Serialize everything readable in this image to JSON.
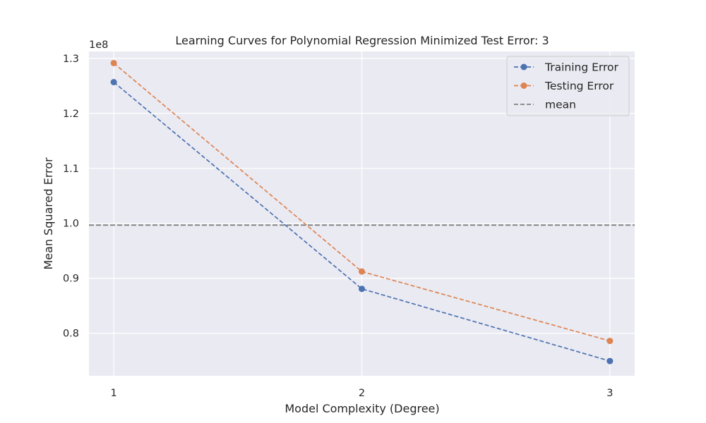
{
  "chart_data": {
    "type": "line",
    "title": "Learning Curves for Polynomial Regression Minimized Test Error: 3",
    "xlabel": "Model Complexity (Degree)",
    "ylabel": "Mean Squared Error",
    "y_offset_label": "1e8",
    "x": [
      1,
      2,
      3
    ],
    "x_tick_labels": [
      "1",
      "2",
      "3"
    ],
    "xlim": [
      0.9,
      3.1
    ],
    "ylim": [
      0.7226,
      1.3126
    ],
    "y_ticks": [
      0.8,
      0.9,
      1.0,
      1.1,
      1.2,
      1.3
    ],
    "y_tick_labels": [
      "0.8",
      "0.9",
      "1.0",
      "1.1",
      "1.2",
      "1.3"
    ],
    "y_scale_factor": 100000000,
    "grid": true,
    "legend_position": "top-right",
    "series": [
      {
        "name": "Training Error",
        "values": [
          1.2568,
          0.8807,
          0.7494
        ],
        "color": "#4c72b0",
        "style": "dashed",
        "marker": "circle"
      },
      {
        "name": "Testing Error",
        "values": [
          1.2915,
          0.9122,
          0.786
        ],
        "color": "#dd8452",
        "style": "dashed",
        "marker": "circle"
      }
    ],
    "reference_line": {
      "name": "mean",
      "y": 0.9967,
      "color": "#808080",
      "style": "dashed"
    }
  }
}
